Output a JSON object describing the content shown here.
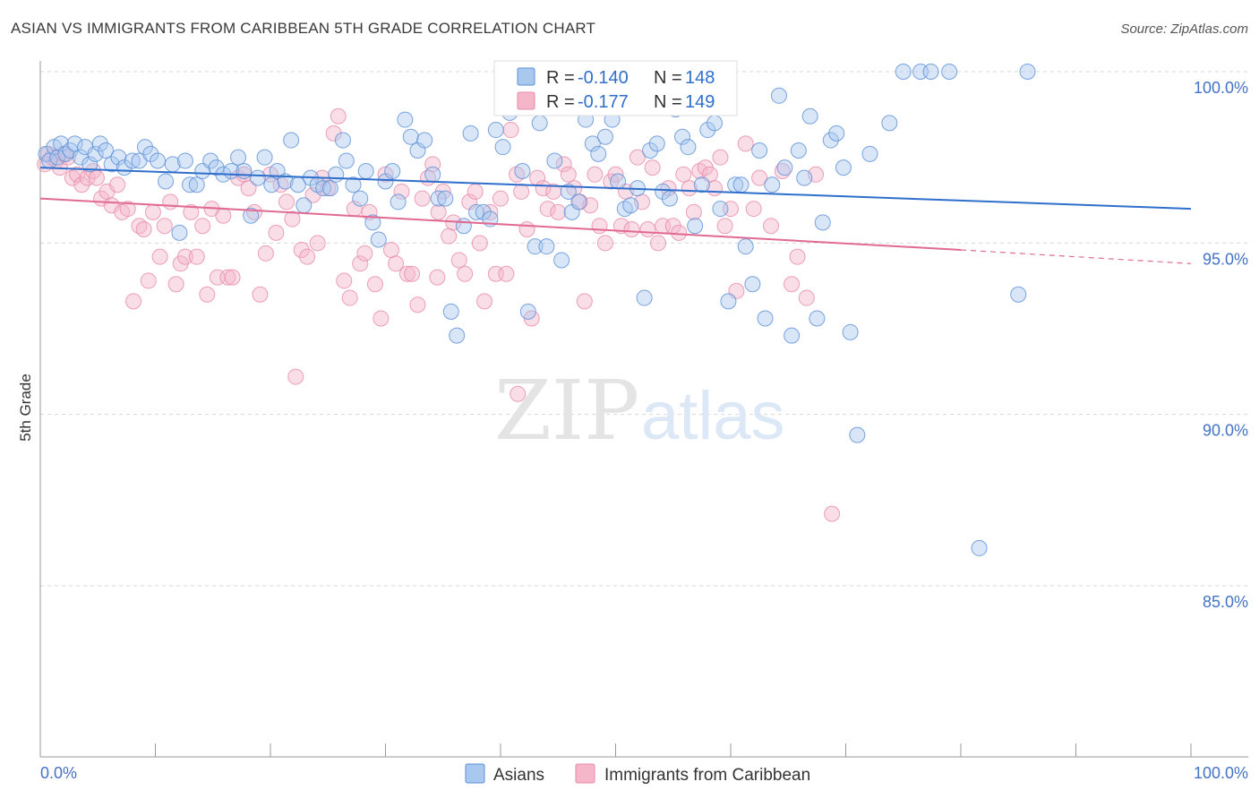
{
  "header": {
    "title": "ASIAN VS IMMIGRANTS FROM CARIBBEAN 5TH GRADE CORRELATION CHART",
    "source": "Source: ZipAtlas.com"
  },
  "watermark": {
    "zip": "ZIP",
    "atlas": "atlas"
  },
  "colors": {
    "asian_fill": "#a8c8f0",
    "asian_stroke": "#5b8fd6",
    "asian_line": "#2f6fcc",
    "carib_fill": "#f5b6c9",
    "carib_stroke": "#e88aa8",
    "carib_line": "#e06a92",
    "value_text": "#2f6fcc",
    "grid": "#d8d8d8"
  },
  "legend": {
    "rows": [
      {
        "r_label": "R =",
        "r_value": "-0.140",
        "n_label": "N =",
        "n_value": "148"
      },
      {
        "r_label": "R =",
        "r_value": "-0.177",
        "n_label": "N =",
        "n_value": "149"
      }
    ]
  },
  "chart_data": {
    "type": "scatter",
    "title": "ASIAN VS IMMIGRANTS FROM CARIBBEAN 5TH GRADE CORRELATION CHART",
    "ylabel": "5th Grade",
    "xlabel": "",
    "xlim": [
      0,
      100
    ],
    "ylim": [
      80.5,
      101.5
    ],
    "y_ticks": [
      100,
      95,
      90,
      85
    ],
    "y_tick_labels": [
      "100.0%",
      "95.0%",
      "90.0%",
      "85.0%"
    ],
    "x_tick_labels": [
      "0.0%",
      "100.0%"
    ],
    "grid": true,
    "legend_position": "top-center",
    "series": [
      {
        "name": "Asians",
        "R": -0.14,
        "N": 148,
        "trend": {
          "x": [
            0,
            100
          ],
          "y": [
            97.2,
            96.0
          ]
        },
        "points": [
          [
            0.5,
            97.6
          ],
          [
            0.8,
            97.4
          ],
          [
            1.2,
            97.8
          ],
          [
            1.5,
            97.5
          ],
          [
            1.8,
            97.9
          ],
          [
            2.2,
            97.6
          ],
          [
            2.6,
            97.7
          ],
          [
            3.0,
            97.9
          ],
          [
            3.5,
            97.5
          ],
          [
            3.9,
            97.8
          ],
          [
            4.3,
            97.3
          ],
          [
            4.8,
            97.6
          ],
          [
            5.2,
            97.9
          ],
          [
            5.7,
            97.7
          ],
          [
            6.2,
            97.3
          ],
          [
            6.8,
            97.5
          ],
          [
            7.3,
            97.2
          ],
          [
            8.0,
            97.4
          ],
          [
            8.6,
            97.4
          ],
          [
            9.1,
            97.8
          ],
          [
            9.6,
            97.6
          ],
          [
            10.2,
            97.4
          ],
          [
            10.9,
            96.8
          ],
          [
            11.5,
            97.3
          ],
          [
            12.1,
            95.3
          ],
          [
            12.6,
            97.4
          ],
          [
            13.0,
            96.7
          ],
          [
            13.6,
            96.7
          ],
          [
            14.1,
            97.1
          ],
          [
            14.8,
            97.4
          ],
          [
            15.3,
            97.2
          ],
          [
            15.9,
            97.0
          ],
          [
            16.6,
            97.1
          ],
          [
            17.2,
            97.5
          ],
          [
            17.7,
            97.1
          ],
          [
            18.3,
            95.8
          ],
          [
            18.9,
            96.9
          ],
          [
            19.5,
            97.5
          ],
          [
            20.1,
            96.7
          ],
          [
            20.6,
            97.1
          ],
          [
            21.3,
            96.8
          ],
          [
            21.8,
            98.0
          ],
          [
            22.4,
            96.7
          ],
          [
            22.9,
            96.1
          ],
          [
            23.5,
            96.9
          ],
          [
            24.1,
            96.7
          ],
          [
            24.6,
            96.6
          ],
          [
            25.2,
            96.6
          ],
          [
            25.7,
            97.0
          ],
          [
            26.3,
            98.0
          ],
          [
            26.6,
            97.4
          ],
          [
            27.2,
            96.7
          ],
          [
            27.8,
            96.3
          ],
          [
            28.3,
            97.1
          ],
          [
            28.9,
            95.6
          ],
          [
            29.4,
            95.1
          ],
          [
            30.0,
            96.8
          ],
          [
            30.6,
            97.1
          ],
          [
            31.1,
            96.2
          ],
          [
            31.7,
            98.6
          ],
          [
            32.2,
            98.1
          ],
          [
            32.8,
            97.7
          ],
          [
            33.4,
            98.0
          ],
          [
            34.1,
            97.0
          ],
          [
            34.6,
            96.3
          ],
          [
            35.2,
            96.3
          ],
          [
            35.7,
            93.0
          ],
          [
            36.2,
            92.3
          ],
          [
            36.8,
            95.5
          ],
          [
            37.4,
            98.2
          ],
          [
            37.9,
            95.9
          ],
          [
            38.5,
            95.9
          ],
          [
            39.1,
            95.7
          ],
          [
            39.6,
            98.3
          ],
          [
            40.2,
            97.8
          ],
          [
            40.8,
            98.8
          ],
          [
            41.3,
            99.1
          ],
          [
            41.9,
            97.1
          ],
          [
            42.4,
            93.0
          ],
          [
            43.0,
            94.9
          ],
          [
            43.4,
            98.5
          ],
          [
            44.0,
            94.9
          ],
          [
            44.7,
            97.4
          ],
          [
            45.3,
            94.5
          ],
          [
            45.9,
            96.5
          ],
          [
            46.2,
            95.9
          ],
          [
            46.8,
            96.2
          ],
          [
            47.4,
            98.6
          ],
          [
            48.0,
            97.9
          ],
          [
            48.5,
            97.6
          ],
          [
            49.1,
            98.1
          ],
          [
            49.7,
            98.6
          ],
          [
            50.2,
            96.8
          ],
          [
            50.8,
            96.0
          ],
          [
            51.3,
            96.1
          ],
          [
            51.9,
            96.6
          ],
          [
            52.5,
            93.4
          ],
          [
            53.0,
            97.7
          ],
          [
            53.6,
            97.9
          ],
          [
            54.1,
            96.5
          ],
          [
            54.7,
            96.3
          ],
          [
            55.2,
            98.9
          ],
          [
            55.8,
            98.1
          ],
          [
            56.3,
            97.8
          ],
          [
            56.9,
            95.5
          ],
          [
            57.5,
            96.7
          ],
          [
            58.0,
            98.3
          ],
          [
            58.6,
            98.5
          ],
          [
            59.1,
            96.0
          ],
          [
            59.8,
            93.3
          ],
          [
            60.4,
            96.7
          ],
          [
            60.9,
            96.7
          ],
          [
            61.3,
            94.9
          ],
          [
            61.9,
            93.8
          ],
          [
            62.5,
            97.7
          ],
          [
            63.0,
            92.8
          ],
          [
            63.6,
            96.7
          ],
          [
            64.2,
            99.3
          ],
          [
            64.7,
            97.2
          ],
          [
            65.3,
            92.3
          ],
          [
            65.9,
            97.7
          ],
          [
            66.4,
            96.9
          ],
          [
            66.9,
            98.7
          ],
          [
            67.5,
            92.8
          ],
          [
            68.0,
            95.6
          ],
          [
            68.7,
            98.0
          ],
          [
            69.2,
            98.2
          ],
          [
            69.8,
            97.2
          ],
          [
            70.4,
            92.4
          ],
          [
            71.0,
            89.4
          ],
          [
            72.1,
            97.6
          ],
          [
            73.8,
            98.5
          ],
          [
            75.0,
            100.0
          ],
          [
            76.5,
            100.0
          ],
          [
            77.4,
            100.0
          ],
          [
            79.0,
            100.0
          ],
          [
            81.6,
            86.1
          ],
          [
            85.8,
            100.0
          ],
          [
            85.0,
            93.5
          ]
        ]
      },
      {
        "name": "Immigrants from Caribbean",
        "R": -0.177,
        "N": 149,
        "trend": {
          "x": [
            0,
            80
          ],
          "y": [
            96.3,
            94.8
          ]
        },
        "trend_dashed": {
          "x": [
            80,
            100
          ],
          "y": [
            94.8,
            94.4
          ]
        },
        "points": [
          [
            0.4,
            97.3
          ],
          [
            0.7,
            97.6
          ],
          [
            1.0,
            97.5
          ],
          [
            1.4,
            97.4
          ],
          [
            1.7,
            97.2
          ],
          [
            2.0,
            97.6
          ],
          [
            2.4,
            97.5
          ],
          [
            2.8,
            96.9
          ],
          [
            3.2,
            97.0
          ],
          [
            3.6,
            96.7
          ],
          [
            4.1,
            96.9
          ],
          [
            4.6,
            97.1
          ],
          [
            4.9,
            96.9
          ],
          [
            5.3,
            96.3
          ],
          [
            5.8,
            96.5
          ],
          [
            6.2,
            96.1
          ],
          [
            6.7,
            96.7
          ],
          [
            7.1,
            95.9
          ],
          [
            7.6,
            96.0
          ],
          [
            8.1,
            93.3
          ],
          [
            8.6,
            95.5
          ],
          [
            9.0,
            95.4
          ],
          [
            9.4,
            93.9
          ],
          [
            9.8,
            95.9
          ],
          [
            10.4,
            94.6
          ],
          [
            10.8,
            95.5
          ],
          [
            11.3,
            96.2
          ],
          [
            11.8,
            93.8
          ],
          [
            12.2,
            94.4
          ],
          [
            12.6,
            94.6
          ],
          [
            13.1,
            95.9
          ],
          [
            13.6,
            94.6
          ],
          [
            14.1,
            95.5
          ],
          [
            14.5,
            93.5
          ],
          [
            14.9,
            96.0
          ],
          [
            15.4,
            94.0
          ],
          [
            15.9,
            95.8
          ],
          [
            16.3,
            94.0
          ],
          [
            16.7,
            94.0
          ],
          [
            17.2,
            96.9
          ],
          [
            17.7,
            97.0
          ],
          [
            18.1,
            96.6
          ],
          [
            18.6,
            95.9
          ],
          [
            19.1,
            93.5
          ],
          [
            19.6,
            94.7
          ],
          [
            20.0,
            97.0
          ],
          [
            20.5,
            95.3
          ],
          [
            20.9,
            96.7
          ],
          [
            21.4,
            96.2
          ],
          [
            21.9,
            95.7
          ],
          [
            22.2,
            91.1
          ],
          [
            22.7,
            94.8
          ],
          [
            23.2,
            94.6
          ],
          [
            23.7,
            96.4
          ],
          [
            24.1,
            95.0
          ],
          [
            24.5,
            96.9
          ],
          [
            25.0,
            96.6
          ],
          [
            25.5,
            98.2
          ],
          [
            25.9,
            98.7
          ],
          [
            26.4,
            93.9
          ],
          [
            26.9,
            93.4
          ],
          [
            27.3,
            96.0
          ],
          [
            27.8,
            94.4
          ],
          [
            28.2,
            94.7
          ],
          [
            28.6,
            95.9
          ],
          [
            29.1,
            93.8
          ],
          [
            29.6,
            92.8
          ],
          [
            30.0,
            97.0
          ],
          [
            30.5,
            94.8
          ],
          [
            30.9,
            94.4
          ],
          [
            31.4,
            96.5
          ],
          [
            31.9,
            94.1
          ],
          [
            32.3,
            94.1
          ],
          [
            32.8,
            93.2
          ],
          [
            33.2,
            96.3
          ],
          [
            33.7,
            96.9
          ],
          [
            34.1,
            97.3
          ],
          [
            34.6,
            95.9
          ],
          [
            35.0,
            96.5
          ],
          [
            35.5,
            95.2
          ],
          [
            35.9,
            95.6
          ],
          [
            36.4,
            94.5
          ],
          [
            36.9,
            94.1
          ],
          [
            37.3,
            96.2
          ],
          [
            37.8,
            96.5
          ],
          [
            38.2,
            95.0
          ],
          [
            38.6,
            93.3
          ],
          [
            39.1,
            95.9
          ],
          [
            39.6,
            94.1
          ],
          [
            40.0,
            96.3
          ],
          [
            40.5,
            94.1
          ],
          [
            40.9,
            98.3
          ],
          [
            41.4,
            97.0
          ],
          [
            41.8,
            96.5
          ],
          [
            42.3,
            95.4
          ],
          [
            42.7,
            92.8
          ],
          [
            43.2,
            96.9
          ],
          [
            43.7,
            96.6
          ],
          [
            44.1,
            96.0
          ],
          [
            44.6,
            96.5
          ],
          [
            45.0,
            95.9
          ],
          [
            45.5,
            97.3
          ],
          [
            45.9,
            97.0
          ],
          [
            46.4,
            96.6
          ],
          [
            46.9,
            96.2
          ],
          [
            47.3,
            93.3
          ],
          [
            47.8,
            96.1
          ],
          [
            48.2,
            97.0
          ],
          [
            48.6,
            95.5
          ],
          [
            49.1,
            95.0
          ],
          [
            49.6,
            96.8
          ],
          [
            50.0,
            97.0
          ],
          [
            50.5,
            95.5
          ],
          [
            50.9,
            96.5
          ],
          [
            51.4,
            95.4
          ],
          [
            51.9,
            97.5
          ],
          [
            52.3,
            96.2
          ],
          [
            52.8,
            95.4
          ],
          [
            53.2,
            97.2
          ],
          [
            53.7,
            95.0
          ],
          [
            54.1,
            95.5
          ],
          [
            54.6,
            96.6
          ],
          [
            55.0,
            95.5
          ],
          [
            55.5,
            95.3
          ],
          [
            55.9,
            97.0
          ],
          [
            56.4,
            96.6
          ],
          [
            56.8,
            95.9
          ],
          [
            57.3,
            97.1
          ],
          [
            57.8,
            97.2
          ],
          [
            58.2,
            97.0
          ],
          [
            58.6,
            96.6
          ],
          [
            59.1,
            97.5
          ],
          [
            59.5,
            95.5
          ],
          [
            60.0,
            96.0
          ],
          [
            60.5,
            93.6
          ],
          [
            61.3,
            97.9
          ],
          [
            62.0,
            96.0
          ],
          [
            62.5,
            96.9
          ],
          [
            63.5,
            95.5
          ],
          [
            64.5,
            97.1
          ],
          [
            65.3,
            93.8
          ],
          [
            65.8,
            94.6
          ],
          [
            66.6,
            93.4
          ],
          [
            67.4,
            97.0
          ],
          [
            68.8,
            87.1
          ],
          [
            41.5,
            90.6
          ],
          [
            49.8,
            100.0
          ],
          [
            34.5,
            94.0
          ]
        ]
      }
    ]
  },
  "bottom_legend": {
    "items": [
      "Asians",
      "Immigrants from Caribbean"
    ]
  }
}
